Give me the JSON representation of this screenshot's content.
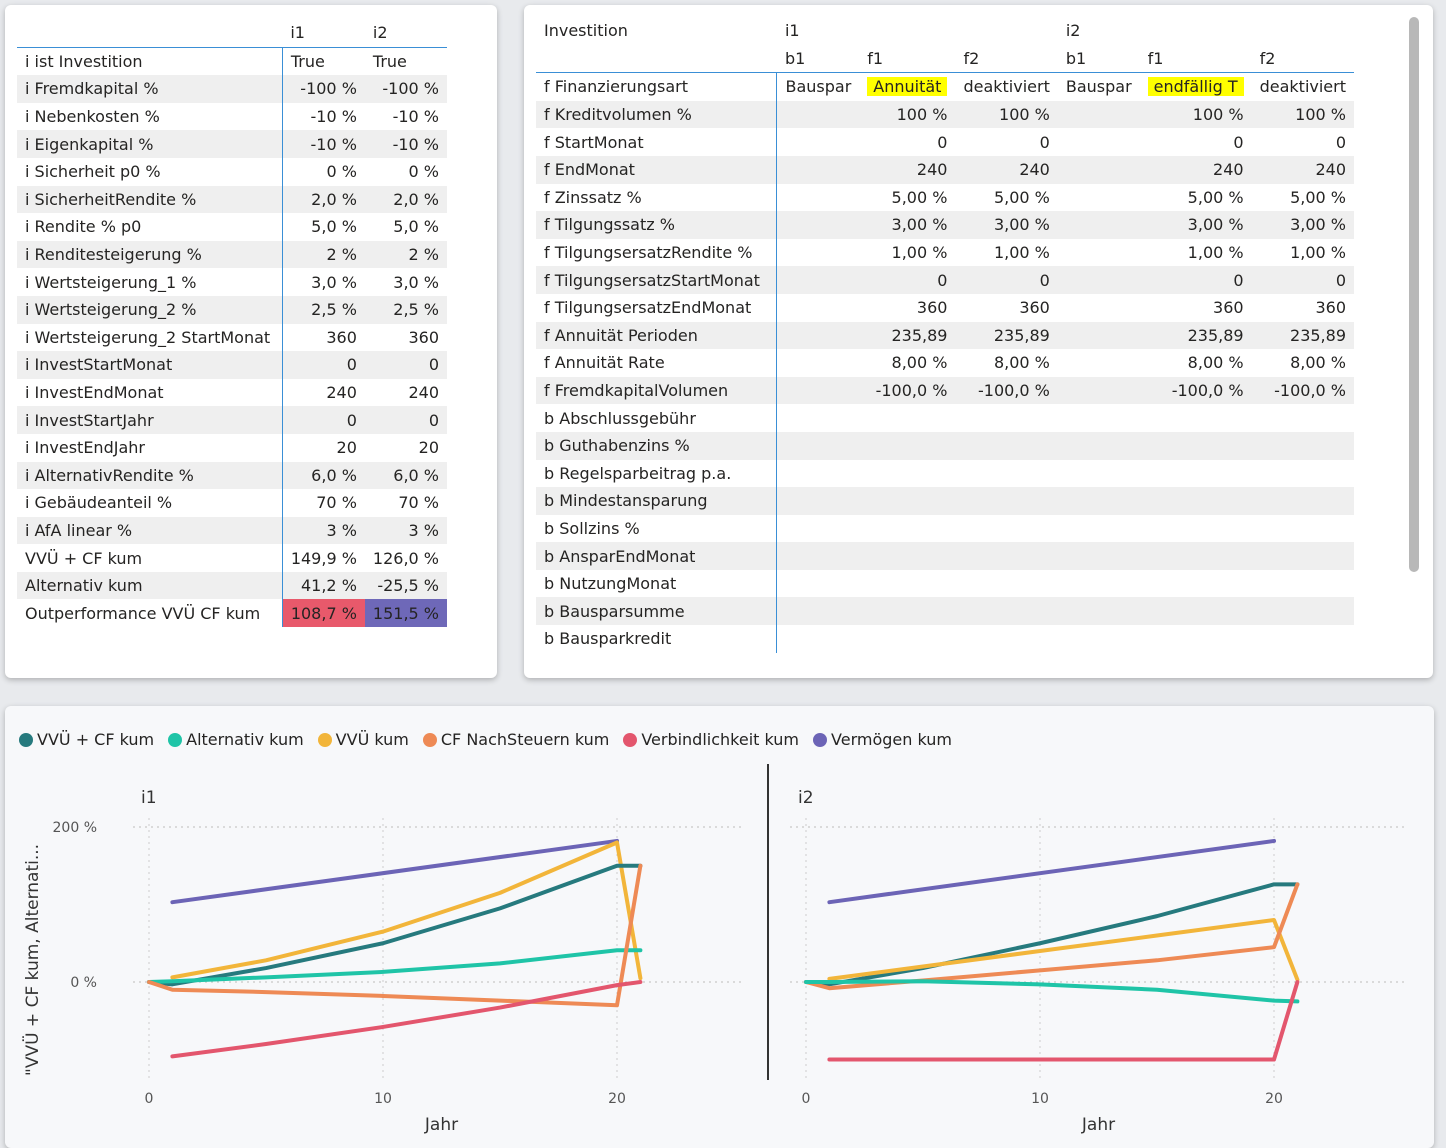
{
  "left_table": {
    "columns": [
      "",
      "i1",
      "i2"
    ],
    "rows": [
      {
        "label": "i ist Investition",
        "v1": "True",
        "v2": "True"
      },
      {
        "label": "i Fremdkapital %",
        "v1": "-100 %",
        "v2": "-100 %"
      },
      {
        "label": "i Nebenkosten %",
        "v1": "-10 %",
        "v2": "-10 %"
      },
      {
        "label": "i Eigenkapital %",
        "v1": "-10 %",
        "v2": "-10 %"
      },
      {
        "label": "i Sicherheit p0 %",
        "v1": "0 %",
        "v2": "0 %"
      },
      {
        "label": "i SicherheitRendite %",
        "v1": "2,0 %",
        "v2": "2,0 %"
      },
      {
        "label": "i Rendite % p0",
        "v1": "5,0 %",
        "v2": "5,0 %"
      },
      {
        "label": "i Renditesteigerung %",
        "v1": "2 %",
        "v2": "2 %"
      },
      {
        "label": "i Wertsteigerung_1 %",
        "v1": "3,0 %",
        "v2": "3,0 %"
      },
      {
        "label": "i Wertsteigerung_2 %",
        "v1": "2,5 %",
        "v2": "2,5 %"
      },
      {
        "label": "i Wertsteigerung_2 StartMonat",
        "v1": "360",
        "v2": "360"
      },
      {
        "label": "i InvestStartMonat",
        "v1": "0",
        "v2": "0"
      },
      {
        "label": "i InvestEndMonat",
        "v1": "240",
        "v2": "240"
      },
      {
        "label": "i InvestStartJahr",
        "v1": "0",
        "v2": "0"
      },
      {
        "label": "i InvestEndJahr",
        "v1": "20",
        "v2": "20"
      },
      {
        "label": "i AlternativRendite %",
        "v1": "6,0 %",
        "v2": "6,0 %"
      },
      {
        "label": "i Gebäudeanteil %",
        "v1": "70 %",
        "v2": "70 %"
      },
      {
        "label": "i AfA linear %",
        "v1": "3 %",
        "v2": "3 %"
      },
      {
        "label": "VVÜ + CF kum",
        "v1": "149,9 %",
        "v2": "126,0 %"
      },
      {
        "label": "Alternativ kum",
        "v1": "41,2 %",
        "v2": "-25,5 %"
      },
      {
        "label": "Outperformance VVÜ CF kum",
        "v1": "108,7 %",
        "v2": "151,5 %"
      }
    ]
  },
  "right_table": {
    "header1": [
      "Investition",
      "i1",
      "",
      "",
      "i2",
      "",
      ""
    ],
    "header2": [
      "",
      "b1",
      "f1",
      "f2",
      "b1",
      "f1",
      "f2"
    ],
    "rows": [
      {
        "label": "f Finanzierungsart",
        "c": [
          "Bauspar",
          "Annuität",
          "deaktiviert",
          "Bauspar",
          "endfällig T",
          "deaktiviert"
        ]
      },
      {
        "label": "f Kreditvolumen %",
        "c": [
          "",
          "100 %",
          "100 %",
          "",
          "100 %",
          "100 %"
        ]
      },
      {
        "label": "f StartMonat",
        "c": [
          "",
          "0",
          "0",
          "",
          "0",
          "0"
        ]
      },
      {
        "label": "f EndMonat",
        "c": [
          "",
          "240",
          "240",
          "",
          "240",
          "240"
        ]
      },
      {
        "label": "f Zinssatz %",
        "c": [
          "",
          "5,00 %",
          "5,00 %",
          "",
          "5,00 %",
          "5,00 %"
        ]
      },
      {
        "label": "f Tilgungssatz %",
        "c": [
          "",
          "3,00 %",
          "3,00 %",
          "",
          "3,00 %",
          "3,00 %"
        ]
      },
      {
        "label": "f TilgungsersatzRendite %",
        "c": [
          "",
          "1,00 %",
          "1,00 %",
          "",
          "1,00 %",
          "1,00 %"
        ]
      },
      {
        "label": "f TilgungsersatzStartMonat",
        "c": [
          "",
          "0",
          "0",
          "",
          "0",
          "0"
        ]
      },
      {
        "label": "f TilgungsersatzEndMonat",
        "c": [
          "",
          "360",
          "360",
          "",
          "360",
          "360"
        ]
      },
      {
        "label": "f Annuität Perioden",
        "c": [
          "",
          "235,89",
          "235,89",
          "",
          "235,89",
          "235,89"
        ]
      },
      {
        "label": "f Annuität Rate",
        "c": [
          "",
          "8,00 %",
          "8,00 %",
          "",
          "8,00 %",
          "8,00 %"
        ]
      },
      {
        "label": "f FremdkapitalVolumen",
        "c": [
          "",
          "-100,0 %",
          "-100,0 %",
          "",
          "-100,0 %",
          "-100,0 %"
        ]
      },
      {
        "label": "b Abschlussgebühr",
        "c": [
          "",
          "",
          "",
          "",
          "",
          ""
        ]
      },
      {
        "label": "b Guthabenzins %",
        "c": [
          "",
          "",
          "",
          "",
          "",
          ""
        ]
      },
      {
        "label": "b Regelsparbeitrag p.a.",
        "c": [
          "",
          "",
          "",
          "",
          "",
          ""
        ]
      },
      {
        "label": "b Mindestansparung",
        "c": [
          "",
          "",
          "",
          "",
          "",
          ""
        ]
      },
      {
        "label": "b Sollzins %",
        "c": [
          "",
          "",
          "",
          "",
          "",
          ""
        ]
      },
      {
        "label": "b AnsparEndMonat",
        "c": [
          "",
          "",
          "",
          "",
          "",
          ""
        ]
      },
      {
        "label": "b NutzungMonat",
        "c": [
          "",
          "",
          "",
          "",
          "",
          ""
        ]
      },
      {
        "label": "b Bausparsumme",
        "c": [
          "",
          "",
          "",
          "",
          "",
          ""
        ]
      },
      {
        "label": "b Bausparkredit",
        "c": [
          "",
          "",
          "",
          "",
          "",
          ""
        ]
      }
    ]
  },
  "chart_data": {
    "type": "line",
    "ylabel": "\"VVÜ + CF kum, Alternati...",
    "xlabel": "Jahr",
    "yticks": [
      "200 %",
      "0 %"
    ],
    "xticks": [
      "0",
      "10",
      "20"
    ],
    "ylim": [
      -100,
      200
    ],
    "xlim": [
      0,
      25
    ],
    "legend": [
      {
        "name": "VVÜ + CF kum",
        "color": "#267a7e"
      },
      {
        "name": "Alternativ kum",
        "color": "#1fc4a7"
      },
      {
        "name": "VVÜ kum",
        "color": "#f2b53a"
      },
      {
        "name": "CF NachSteuern kum",
        "color": "#ee8a55"
      },
      {
        "name": "Verbindlichkeit kum",
        "color": "#e3566d"
      },
      {
        "name": "Vermögen kum",
        "color": "#6c64b6"
      }
    ],
    "panels": [
      {
        "title": "i1",
        "series": [
          {
            "name": "Vermögen kum",
            "x": [
              1,
              20
            ],
            "y": [
              103,
              182
            ]
          },
          {
            "name": "VVÜ kum",
            "x": [
              1,
              5,
              10,
              15,
              20,
              21
            ],
            "y": [
              6,
              28,
              65,
              115,
              180,
              5
            ]
          },
          {
            "name": "VVÜ + CF kum",
            "x": [
              0,
              1,
              5,
              10,
              15,
              20,
              21
            ],
            "y": [
              0,
              -3,
              18,
              50,
              95,
              150,
              150
            ]
          },
          {
            "name": "Alternativ kum",
            "x": [
              0,
              1,
              5,
              10,
              15,
              20,
              21
            ],
            "y": [
              0,
              1,
              6,
              13,
              24,
              41,
              41
            ]
          },
          {
            "name": "CF NachSteuern kum",
            "x": [
              0,
              1,
              5,
              10,
              15,
              20,
              21
            ],
            "y": [
              0,
              -10,
              -13,
              -18,
              -24,
              -30,
              150
            ]
          },
          {
            "name": "Verbindlichkeit kum",
            "x": [
              1,
              5,
              10,
              15,
              20,
              21
            ],
            "y": [
              -96,
              -80,
              -58,
              -33,
              -4,
              0
            ]
          }
        ]
      },
      {
        "title": "i2",
        "series": [
          {
            "name": "Vermögen kum",
            "x": [
              1,
              20
            ],
            "y": [
              103,
              182
            ]
          },
          {
            "name": "VVÜ + CF kum",
            "x": [
              0,
              1,
              5,
              10,
              15,
              20,
              21
            ],
            "y": [
              0,
              -3,
              18,
              50,
              85,
              126,
              126
            ]
          },
          {
            "name": "VVÜ kum",
            "x": [
              1,
              5,
              10,
              15,
              20,
              21
            ],
            "y": [
              4,
              20,
              40,
              60,
              80,
              3
            ]
          },
          {
            "name": "CF NachSteuern kum",
            "x": [
              0,
              1,
              5,
              10,
              15,
              20,
              21
            ],
            "y": [
              0,
              -8,
              2,
              15,
              28,
              45,
              126
            ]
          },
          {
            "name": "Alternativ kum",
            "x": [
              0,
              1,
              5,
              10,
              15,
              20,
              21
            ],
            "y": [
              0,
              0,
              1,
              -3,
              -10,
              -24,
              -25
            ]
          },
          {
            "name": "Verbindlichkeit kum",
            "x": [
              1,
              20,
              21
            ],
            "y": [
              -100,
              -100,
              0
            ]
          }
        ]
      }
    ]
  }
}
